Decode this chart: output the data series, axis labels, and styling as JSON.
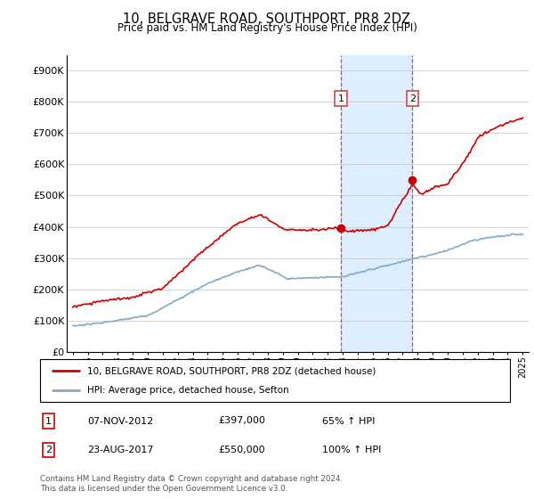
{
  "title": "10, BELGRAVE ROAD, SOUTHPORT, PR8 2DZ",
  "subtitle": "Price paid vs. HM Land Registry's House Price Index (HPI)",
  "legend_line1": "10, BELGRAVE ROAD, SOUTHPORT, PR8 2DZ (detached house)",
  "legend_line2": "HPI: Average price, detached house, Sefton",
  "annotation1_label": "1",
  "annotation1_date": "07-NOV-2012",
  "annotation1_price": "£397,000",
  "annotation1_hpi": "65% ↑ HPI",
  "annotation2_label": "2",
  "annotation2_date": "23-AUG-2017",
  "annotation2_price": "£550,000",
  "annotation2_hpi": "100% ↑ HPI",
  "footnote": "Contains HM Land Registry data © Crown copyright and database right 2024.\nThis data is licensed under the Open Government Licence v3.0.",
  "red_color": "#cc0000",
  "blue_color": "#7faacc",
  "shade_color": "#ddeeff",
  "vline_color": "#dd4444",
  "ylim_min": 0,
  "ylim_max": 950000,
  "sale1_year": 2012.87,
  "sale1_price": 397000,
  "sale2_year": 2017.65,
  "sale2_price": 550000
}
